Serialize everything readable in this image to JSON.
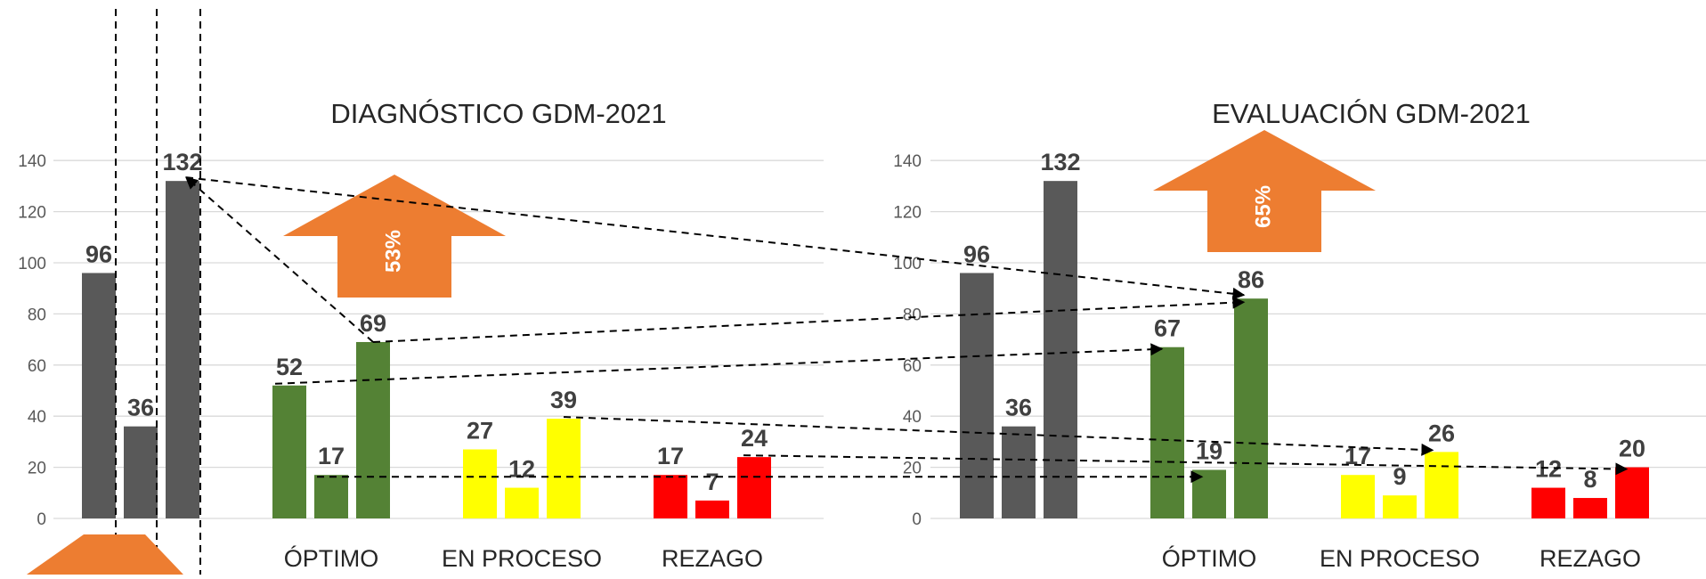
{
  "colors": {
    "total": "#595959",
    "optimo": "#548235",
    "en_proceso": "#ffff00",
    "rezago": "#ff0000",
    "arrow": "#ed7d31",
    "grid": "#d9d9d9"
  },
  "chart_data": [
    {
      "type": "bar",
      "title": "DIAGNÓSTICO GDM-2021",
      "categories": [
        "",
        "ÓPTIMO",
        "EN PROCESO",
        "REZAGO"
      ],
      "ylim": [
        0,
        140
      ],
      "yticks": [
        0,
        20,
        40,
        60,
        80,
        100,
        120,
        140
      ],
      "grid": true,
      "series_colors": [
        "#595959",
        "#548235",
        "#ffff00",
        "#ff0000"
      ],
      "values": [
        [
          96,
          36,
          132
        ],
        [
          52,
          17,
          69
        ],
        [
          27,
          12,
          39
        ],
        [
          17,
          7,
          24
        ]
      ],
      "annotation": "53%"
    },
    {
      "type": "bar",
      "title": "EVALUACIÓN GDM-2021",
      "categories": [
        "",
        "ÓPTIMO",
        "EN PROCESO",
        "REZAGO"
      ],
      "ylim": [
        0,
        140
      ],
      "yticks": [
        0,
        20,
        40,
        60,
        80,
        100,
        120,
        140
      ],
      "grid": true,
      "series_colors": [
        "#595959",
        "#548235",
        "#ffff00",
        "#ff0000"
      ],
      "values": [
        [
          96,
          36,
          132
        ],
        [
          67,
          19,
          86
        ],
        [
          17,
          9,
          26
        ],
        [
          12,
          8,
          20
        ]
      ],
      "annotation": "65%"
    }
  ]
}
